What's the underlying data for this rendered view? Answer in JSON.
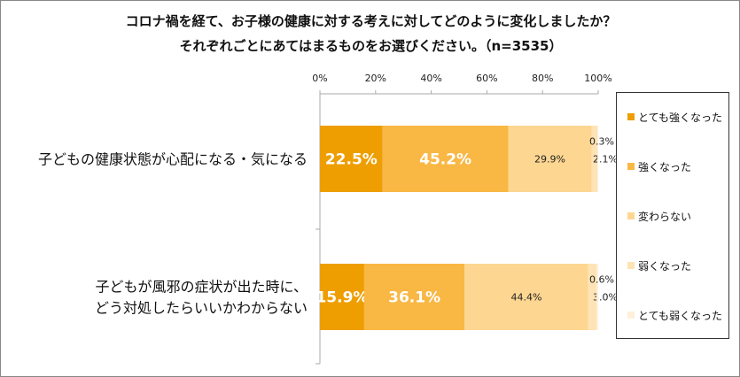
{
  "chart_data": {
    "type": "bar",
    "orientation": "horizontal-stacked-100",
    "title": [
      "コロナ禍を経て、お子様の健康に対する考えに対してどのように変化しましたか？",
      "それぞれごとにあてはまるものをお選びください。（n=3535）"
    ],
    "categories": [
      "子どもの健康状態が心配になる・気になる",
      "子どもが風邪の症状が出た時に、どう対処したらいいかわからない"
    ],
    "category_lines": [
      [
        "子どもの健康状態が心配になる・気になる"
      ],
      [
        "子どもが風邪の症状が出た時に、",
        "どう対処したらいいかわからない"
      ]
    ],
    "series": [
      {
        "name": "とても強くなった",
        "color": "#EE9E00",
        "values": [
          22.5,
          15.9
        ]
      },
      {
        "name": "強くなった",
        "color": "#F9B744",
        "values": [
          45.2,
          36.1
        ]
      },
      {
        "name": "変わらない",
        "color": "#FDD691",
        "values": [
          29.9,
          44.4
        ]
      },
      {
        "name": "弱くなった",
        "color": "#FEE3B5",
        "values": [
          2.1,
          3.0
        ]
      },
      {
        "name": "とても弱くなった",
        "color": "#FFF0DA",
        "values": [
          0.3,
          0.6
        ]
      }
    ],
    "data_labels": [
      [
        "22.5%",
        "45.2%",
        "29.9%",
        "2.1%",
        "0.3%"
      ],
      [
        "15.9%",
        "36.1%",
        "44.4%",
        "3.0%",
        "0.6%"
      ]
    ],
    "xticks": [
      "0%",
      "20%",
      "40%",
      "60%",
      "80%",
      "100%"
    ],
    "xlim": [
      0,
      100
    ],
    "legend": "right"
  }
}
